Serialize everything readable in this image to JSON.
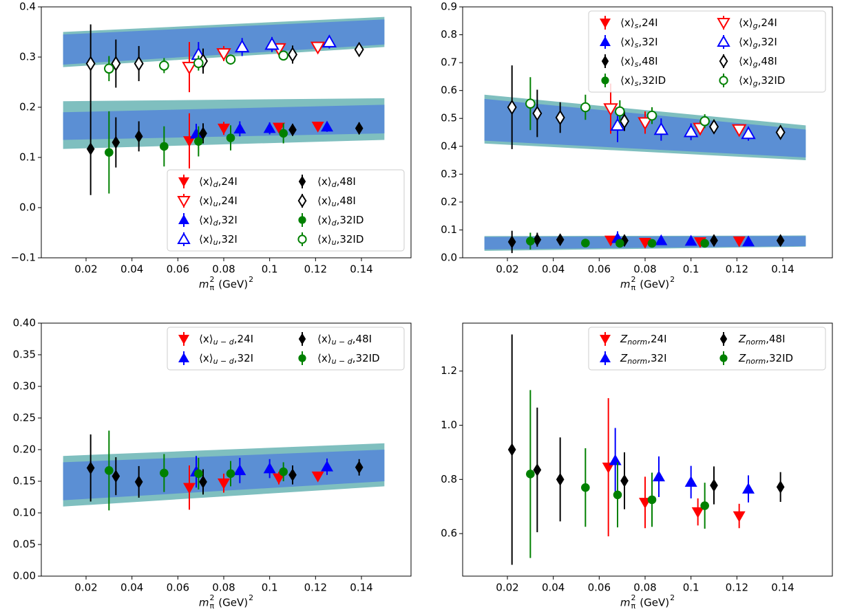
{
  "chart_data": [
    {
      "type": "errorbar",
      "xlabel": [
        "m",
        "π",
        "2",
        " (GeV)",
        "2"
      ],
      "xlim": [
        0.0005,
        0.1616
      ],
      "xticks": [
        0.02,
        0.04,
        0.06,
        0.08,
        0.1,
        0.12,
        0.14
      ],
      "ylim": [
        -0.1,
        0.4
      ],
      "yticks": [
        {
          "value": -0.1,
          "label": "−0.1"
        },
        {
          "value": 0,
          "label": "0.0"
        },
        0.1,
        0.2,
        0.3,
        0.4
      ],
      "legend": {
        "loc": "lower right",
        "ncol": 2
      },
      "bands": [
        {
          "x": [
            0.01,
            0.15
          ],
          "outer_low": [
            0.28,
            0.32
          ],
          "outer_high": [
            0.35,
            0.38
          ],
          "inner_low": [
            0.285,
            0.325
          ],
          "inner_high": [
            0.345,
            0.375
          ],
          "outer_color": "#7fbfbf",
          "inner_color": "#5b8fd4"
        },
        {
          "x": [
            0.01,
            0.15
          ],
          "outer_low": [
            0.117,
            0.135
          ],
          "outer_high": [
            0.212,
            0.218
          ],
          "inner_low": [
            0.135,
            0.148
          ],
          "inner_high": [
            0.19,
            0.205
          ],
          "outer_color": "#7fbfbf",
          "inner_color": "#5b8fd4"
        }
      ],
      "series": [
        {
          "name_parts": [
            "⟨x⟩",
            "d",
            ",24I"
          ],
          "color": "#ff0000",
          "marker": "v",
          "filled": true,
          "x": [
            0.065,
            0.08,
            0.104,
            0.121
          ],
          "values": [
            0.133,
            0.158,
            0.16,
            0.162
          ],
          "yerr": [
            0.055,
            0.013,
            0.008,
            0.007
          ]
        },
        {
          "name_parts": [
            "⟨x⟩",
            "u",
            ",24I"
          ],
          "color": "#ff0000",
          "marker": "v",
          "filled": false,
          "x": [
            0.065,
            0.08,
            0.104,
            0.121
          ],
          "values": [
            0.28,
            0.307,
            0.317,
            0.32
          ],
          "yerr": [
            0.05,
            0.015,
            0.01,
            0.008
          ]
        },
        {
          "name_parts": [
            "⟨x⟩",
            "d",
            ",32I"
          ],
          "color": "#0000ff",
          "marker": "^",
          "filled": true,
          "x": [
            0.068,
            0.087,
            0.1,
            0.125
          ],
          "values": [
            0.147,
            0.157,
            0.158,
            0.161
          ],
          "yerr": [
            0.02,
            0.015,
            0.012,
            0.01
          ]
        },
        {
          "name_parts": [
            "⟨x⟩",
            "u",
            ",32I"
          ],
          "color": "#0000ff",
          "marker": "^",
          "filled": false,
          "x": [
            0.069,
            0.088,
            0.101,
            0.126
          ],
          "values": [
            0.305,
            0.32,
            0.325,
            0.33
          ],
          "yerr": [
            0.025,
            0.018,
            0.015,
            0.013
          ]
        },
        {
          "name_parts": [
            "⟨x⟩",
            "d",
            ",48I"
          ],
          "color": "#000000",
          "marker": "d",
          "filled": true,
          "x": [
            0.022,
            0.033,
            0.043,
            0.071,
            0.11,
            0.139
          ],
          "values": [
            0.117,
            0.13,
            0.142,
            0.148,
            0.155,
            0.158
          ],
          "yerr": [
            0.092,
            0.05,
            0.03,
            0.02,
            0.012,
            0.012
          ]
        },
        {
          "name_parts": [
            "⟨x⟩",
            "u",
            ",48I"
          ],
          "color": "#000000",
          "marker": "d",
          "filled": false,
          "x": [
            0.022,
            0.033,
            0.043,
            0.071,
            0.11,
            0.139
          ],
          "values": [
            0.287,
            0.287,
            0.287,
            0.292,
            0.305,
            0.315
          ],
          "yerr": [
            0.078,
            0.048,
            0.035,
            0.025,
            0.018,
            0.013
          ]
        },
        {
          "name_parts": [
            "⟨x⟩",
            "d",
            ",32ID"
          ],
          "color": "#008000",
          "marker": "o",
          "filled": true,
          "x": [
            0.03,
            0.054,
            0.069,
            0.083,
            0.106
          ],
          "values": [
            0.11,
            0.122,
            0.132,
            0.139,
            0.148
          ],
          "yerr": [
            0.082,
            0.04,
            0.03,
            0.025,
            0.02
          ]
        },
        {
          "name_parts": [
            "⟨x⟩",
            "u",
            ",32ID"
          ],
          "color": "#008000",
          "marker": "o",
          "filled": false,
          "x": [
            0.03,
            0.054,
            0.069,
            0.083,
            0.106
          ],
          "values": [
            0.277,
            0.283,
            0.288,
            0.295,
            0.303
          ],
          "yerr": [
            0.025,
            0.015,
            0.015,
            0.01,
            0.008
          ]
        }
      ]
    },
    {
      "type": "errorbar",
      "xlabel": [
        "m",
        "π",
        "2",
        " (GeV)",
        "2"
      ],
      "xlim": [
        0.0005,
        0.1616
      ],
      "xticks": [
        0.02,
        0.04,
        0.06,
        0.08,
        0.1,
        0.12,
        0.14
      ],
      "ylim": [
        0,
        0.9
      ],
      "yticks": [
        {
          "value": 0,
          "label": "0.0"
        },
        0.1,
        0.2,
        0.3,
        0.4,
        0.5,
        0.6,
        0.7,
        0.8,
        0.9
      ],
      "legend": {
        "loc": "upper right",
        "ncol": 2
      },
      "bands": [
        {
          "x": [
            0.01,
            0.15
          ],
          "outer_low": [
            0.41,
            0.35
          ],
          "outer_high": [
            0.585,
            0.475
          ],
          "inner_low": [
            0.42,
            0.36
          ],
          "inner_high": [
            0.57,
            0.46
          ],
          "outer_color": "#7fbfbf",
          "inner_color": "#5b8fd4"
        },
        {
          "x": [
            0.01,
            0.15
          ],
          "outer_low": [
            0.025,
            0.04
          ],
          "outer_high": [
            0.078,
            0.08
          ],
          "inner_low": [
            0.03,
            0.042
          ],
          "inner_high": [
            0.075,
            0.078
          ],
          "outer_color": "#7fbfbf",
          "inner_color": "#5b8fd4"
        }
      ],
      "series": [
        {
          "name_parts": [
            "⟨x⟩",
            "s",
            ",24I"
          ],
          "color": "#ff0000",
          "marker": "v",
          "filled": true,
          "x": [
            0.065,
            0.08,
            0.104,
            0.121
          ],
          "values": [
            0.063,
            0.055,
            0.057,
            0.06
          ],
          "yerr": [
            0.01,
            0.008,
            0.006,
            0.005
          ]
        },
        {
          "name_parts": [
            "⟨x⟩",
            "s",
            ",32I"
          ],
          "color": "#0000ff",
          "marker": "^",
          "filled": true,
          "x": [
            0.068,
            0.087,
            0.1,
            0.125
          ],
          "values": [
            0.07,
            0.062,
            0.06,
            0.058
          ],
          "yerr": [
            0.025,
            0.01,
            0.008,
            0.007
          ]
        },
        {
          "name_parts": [
            "⟨x⟩",
            "s",
            ",48I"
          ],
          "color": "#000000",
          "marker": "d",
          "filled": true,
          "x": [
            0.022,
            0.033,
            0.043,
            0.071,
            0.11,
            0.139
          ],
          "values": [
            0.057,
            0.065,
            0.065,
            0.062,
            0.062,
            0.062
          ],
          "yerr": [
            0.04,
            0.025,
            0.015,
            0.012,
            0.01,
            0.01
          ]
        },
        {
          "name_parts": [
            "⟨x⟩",
            "s",
            ",32ID"
          ],
          "color": "#008000",
          "marker": "o",
          "filled": true,
          "x": [
            0.03,
            0.054,
            0.069,
            0.083,
            0.106
          ],
          "values": [
            0.06,
            0.053,
            0.052,
            0.052,
            0.052
          ],
          "yerr": [
            0.03,
            0.01,
            0.015,
            0.01,
            0.008
          ]
        },
        {
          "name_parts": [
            "⟨x⟩",
            "g",
            ",24I"
          ],
          "color": "#ff0000",
          "marker": "v",
          "filled": false,
          "x": [
            0.065,
            0.08,
            0.104,
            0.121
          ],
          "values": [
            0.535,
            0.485,
            0.465,
            0.46
          ],
          "yerr": [
            0.09,
            0.04,
            0.025,
            0.015
          ]
        },
        {
          "name_parts": [
            "⟨x⟩",
            "g",
            ",32I"
          ],
          "color": "#0000ff",
          "marker": "^",
          "filled": false,
          "x": [
            0.068,
            0.087,
            0.1,
            0.125
          ],
          "values": [
            0.475,
            0.46,
            0.452,
            0.445
          ],
          "yerr": [
            0.06,
            0.04,
            0.03,
            0.025
          ]
        },
        {
          "name_parts": [
            "⟨x⟩",
            "g",
            ",48I"
          ],
          "color": "#000000",
          "marker": "d",
          "filled": false,
          "x": [
            0.022,
            0.033,
            0.043,
            0.071,
            0.11,
            0.139
          ],
          "values": [
            0.54,
            0.518,
            0.503,
            0.49,
            0.47,
            0.45
          ],
          "yerr": [
            0.15,
            0.085,
            0.055,
            0.035,
            0.025,
            0.02
          ]
        },
        {
          "name_parts": [
            "⟨x⟩",
            "g",
            ",32ID"
          ],
          "color": "#008000",
          "marker": "o",
          "filled": false,
          "x": [
            0.03,
            0.054,
            0.069,
            0.083,
            0.106
          ],
          "values": [
            0.553,
            0.54,
            0.525,
            0.51,
            0.49
          ],
          "yerr": [
            0.095,
            0.045,
            0.04,
            0.03,
            0.025
          ]
        }
      ]
    },
    {
      "type": "errorbar",
      "xlabel": [
        "m",
        "π",
        "2",
        " (GeV)",
        "2"
      ],
      "xlim": [
        0.0005,
        0.1616
      ],
      "xticks": [
        0.02,
        0.04,
        0.06,
        0.08,
        0.1,
        0.12,
        0.14
      ],
      "ylim": [
        0,
        0.4
      ],
      "yticks": [
        {
          "value": 0,
          "label": "0.00"
        },
        0.05,
        {
          "value": 0.1,
          "label": "0.10"
        },
        0.15,
        {
          "value": 0.2,
          "label": "0.20"
        },
        0.25,
        {
          "value": 0.3,
          "label": "0.30"
        },
        0.35,
        {
          "value": 0.4,
          "label": "0.40"
        }
      ],
      "legend": {
        "loc": "upper right",
        "ncol": 2
      },
      "bands": [
        {
          "x": [
            0.01,
            0.15
          ],
          "outer_low": [
            0.11,
            0.142
          ],
          "outer_high": [
            0.19,
            0.21
          ],
          "inner_low": [
            0.12,
            0.15
          ],
          "inner_high": [
            0.18,
            0.2
          ],
          "outer_color": "#7fbfbf",
          "inner_color": "#5b8fd4"
        }
      ],
      "series": [
        {
          "name_parts": [
            "⟨x⟩",
            "u − d",
            ",24I"
          ],
          "color": "#ff0000",
          "marker": "v",
          "filled": true,
          "x": [
            0.065,
            0.08,
            0.104,
            0.121
          ],
          "values": [
            0.14,
            0.147,
            0.155,
            0.158
          ],
          "yerr": [
            0.035,
            0.015,
            0.01,
            0.007
          ]
        },
        {
          "name_parts": [
            "⟨x⟩",
            "u − d",
            ",32I"
          ],
          "color": "#0000ff",
          "marker": "^",
          "filled": true,
          "x": [
            0.068,
            0.087,
            0.1,
            0.125
          ],
          "values": [
            0.165,
            0.167,
            0.17,
            0.173
          ],
          "yerr": [
            0.025,
            0.02,
            0.015,
            0.013
          ]
        },
        {
          "name_parts": [
            "⟨x⟩",
            "u − d",
            ",48I"
          ],
          "color": "#000000",
          "marker": "d",
          "filled": true,
          "x": [
            0.022,
            0.033,
            0.043,
            0.071,
            0.11,
            0.139
          ],
          "values": [
            0.171,
            0.158,
            0.149,
            0.149,
            0.16,
            0.172
          ],
          "yerr": [
            0.053,
            0.03,
            0.025,
            0.02,
            0.015,
            0.013
          ]
        },
        {
          "name_parts": [
            "⟨x⟩",
            "u − d",
            ",32ID"
          ],
          "color": "#008000",
          "marker": "o",
          "filled": true,
          "x": [
            0.03,
            0.054,
            0.069,
            0.083,
            0.106
          ],
          "values": [
            0.167,
            0.163,
            0.162,
            0.162,
            0.165
          ],
          "yerr": [
            0.063,
            0.03,
            0.025,
            0.02,
            0.015
          ]
        }
      ]
    },
    {
      "type": "errorbar",
      "xlabel": [
        "m",
        "π",
        "2",
        " (GeV)",
        "2"
      ],
      "xlim": [
        0.0005,
        0.1616
      ],
      "xticks": [
        0.02,
        0.04,
        0.06,
        0.08,
        0.1,
        0.12,
        0.14
      ],
      "ylim": [
        0.443,
        1.377
      ],
      "yticks": [
        0.6,
        0.8,
        {
          "value": 1,
          "label": "1.0"
        },
        1.2
      ],
      "legend": {
        "loc": "upper right",
        "ncol": 2
      },
      "bands": [],
      "series": [
        {
          "name_parts": [
            "Z",
            "norm",
            ",24I"
          ],
          "color": "#ff0000",
          "marker": "v",
          "filled": true,
          "x": [
            0.064,
            0.08,
            0.103,
            0.121
          ],
          "values": [
            0.845,
            0.715,
            0.68,
            0.665
          ],
          "yerr": [
            0.255,
            0.095,
            0.05,
            0.045
          ]
        },
        {
          "name_parts": [
            "Z",
            "norm",
            ",32I"
          ],
          "color": "#0000ff",
          "marker": "^",
          "filled": true,
          "x": [
            0.067,
            0.086,
            0.1,
            0.125
          ],
          "values": [
            0.87,
            0.81,
            0.79,
            0.765
          ],
          "yerr": [
            0.12,
            0.075,
            0.06,
            0.05
          ]
        },
        {
          "name_parts": [
            "Z",
            "norm",
            ",48I"
          ],
          "color": "#000000",
          "marker": "d",
          "filled": true,
          "x": [
            0.022,
            0.033,
            0.043,
            0.071,
            0.11,
            0.139
          ],
          "values": [
            0.91,
            0.835,
            0.8,
            0.795,
            0.778,
            0.772
          ],
          "yerr": [
            0.425,
            0.23,
            0.155,
            0.105,
            0.07,
            0.055
          ]
        },
        {
          "name_parts": [
            "Z",
            "norm",
            ",32ID"
          ],
          "color": "#008000",
          "marker": "o",
          "filled": true,
          "x": [
            0.03,
            0.054,
            0.068,
            0.083,
            0.106
          ],
          "values": [
            0.82,
            0.77,
            0.743,
            0.725,
            0.703
          ],
          "yerr": [
            0.31,
            0.145,
            0.12,
            0.1,
            0.085
          ]
        }
      ]
    }
  ]
}
